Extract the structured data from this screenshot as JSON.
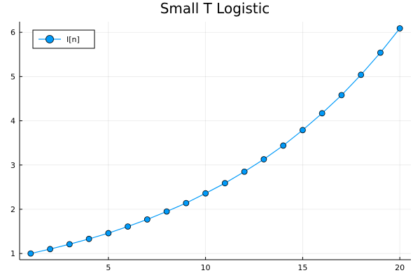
{
  "chart_data": {
    "type": "line",
    "title": "Small T Logistic",
    "xlabel": "",
    "ylabel": "",
    "xlim": [
      0.43,
      20.57
    ],
    "ylim": [
      0.86,
      6.24
    ],
    "xticks": [
      5,
      10,
      15,
      20
    ],
    "yticks": [
      1,
      2,
      3,
      4,
      5,
      6
    ],
    "grid": true,
    "legend_position": "top-left",
    "series": [
      {
        "name": "I[n]",
        "color": "#009af9",
        "marker": "circle",
        "x": [
          1,
          2,
          3,
          4,
          5,
          6,
          7,
          8,
          9,
          10,
          11,
          12,
          13,
          14,
          15,
          16,
          17,
          18,
          19,
          20
        ],
        "y": [
          1.0,
          1.1,
          1.21,
          1.33,
          1.46,
          1.61,
          1.77,
          1.95,
          2.14,
          2.36,
          2.59,
          2.85,
          3.13,
          3.44,
          3.79,
          4.17,
          4.58,
          5.04,
          5.54,
          6.09
        ]
      }
    ]
  }
}
